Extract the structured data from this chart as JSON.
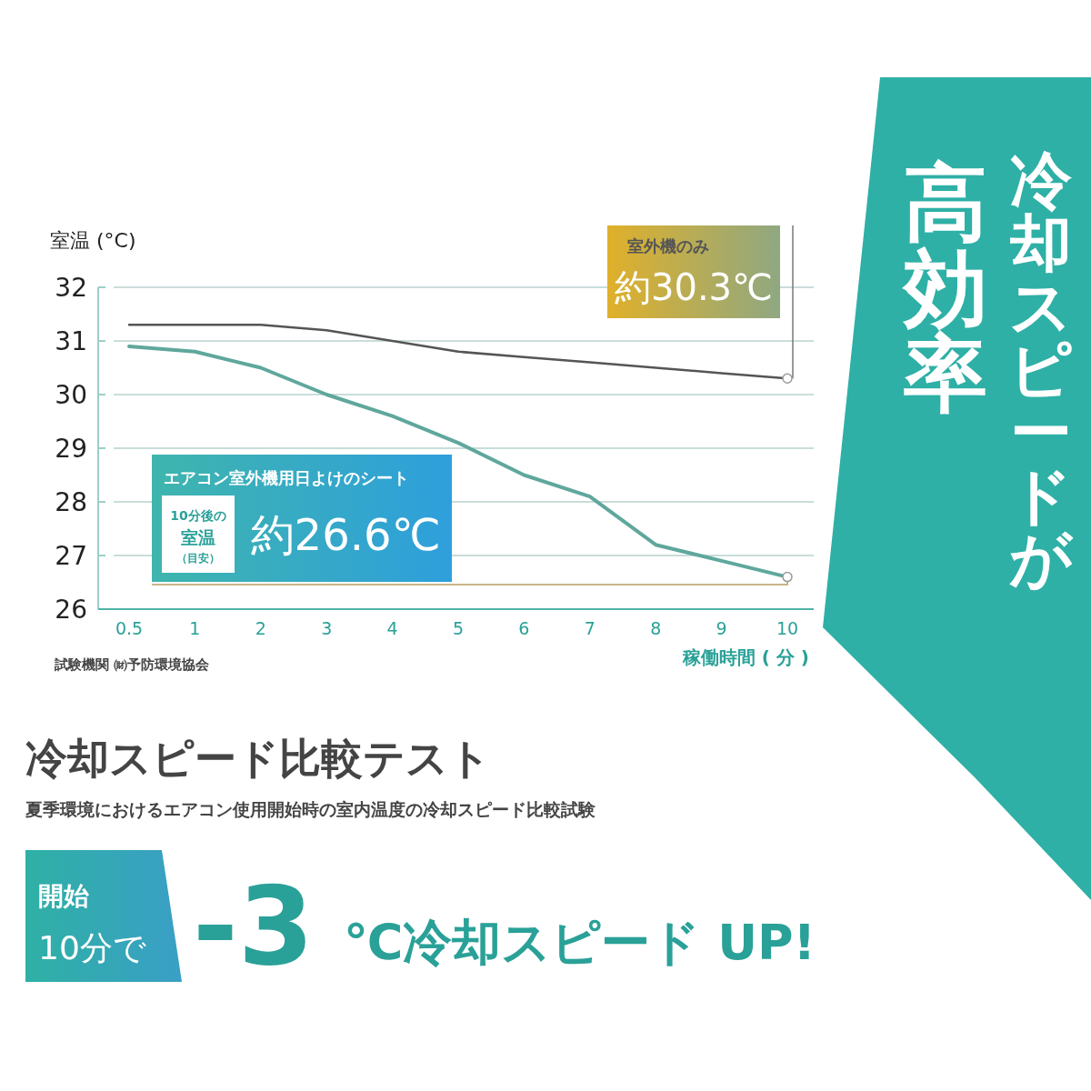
{
  "chart_data": {
    "type": "line",
    "title": "冷却スピード比較テスト",
    "subtitle": "夏季環境におけるエアコン使用開始時の室内温度の冷却スピード比較試験",
    "xlabel": "稼働時間 ( 分 )",
    "ylabel": "室温 (°C)",
    "categories": [
      "0.5",
      "1",
      "2",
      "3",
      "4",
      "5",
      "6",
      "7",
      "8",
      "9",
      "10"
    ],
    "series": [
      {
        "name": "室外機のみ",
        "color": "#555555",
        "values": [
          31.3,
          31.3,
          31.3,
          31.2,
          31.0,
          30.8,
          30.7,
          30.6,
          30.5,
          30.4,
          30.3
        ]
      },
      {
        "name": "エアコン室外機用日よけのシート",
        "color": "#5fa79c",
        "values": [
          30.9,
          30.8,
          30.5,
          30.0,
          29.6,
          29.1,
          28.5,
          28.1,
          27.2,
          26.9,
          26.6
        ]
      }
    ],
    "ylim": [
      26,
      32
    ],
    "yticks": [
      26,
      27,
      28,
      29,
      30,
      31,
      32
    ],
    "grid": "y",
    "legend": false,
    "marker": "none",
    "line_style": "solid",
    "annotations": [
      {
        "text": "約30.3℃",
        "x": "10",
        "y": 30.3
      },
      {
        "text": "約26.6℃",
        "x": "10",
        "y": 26.6
      },
      "10分後の",
      "室温",
      "（目安）",
      "試験機関 ㈶予防環境協会",
      "開始",
      "10分で",
      "-3",
      "℃冷却スピード UP!",
      "冷却スピードが",
      "高効率"
    ]
  }
}
